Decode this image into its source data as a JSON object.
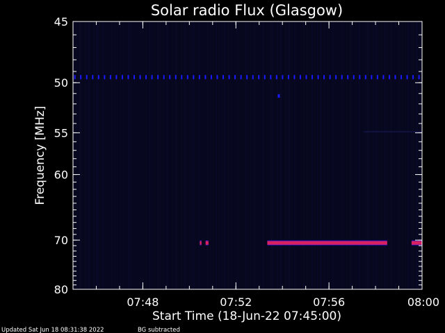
{
  "chart_data": {
    "type": "heatmap",
    "title": "Solar radio Flux (Glasgow)",
    "xlabel": "Start Time (18-Jun-22 07:45:00)",
    "ylabel": "Frequency [MHz]",
    "x_range_minutes": [
      0,
      15
    ],
    "x_ticks": [
      {
        "label": "07:48",
        "minute": 3
      },
      {
        "label": "07:52",
        "minute": 7
      },
      {
        "label": "07:56",
        "minute": 11
      },
      {
        "label": "08:00",
        "minute": 15
      }
    ],
    "y_range_mhz": [
      45,
      80
    ],
    "y_scale": "reciprocal",
    "y_ticks": [
      {
        "label": "45",
        "mhz": 45
      },
      {
        "label": "50",
        "mhz": 50
      },
      {
        "label": "55",
        "mhz": 55
      },
      {
        "label": "60",
        "mhz": 60
      },
      {
        "label": "70",
        "mhz": 70
      },
      {
        "label": "80",
        "mhz": 80
      }
    ],
    "background_color": "#07071e",
    "colors": {
      "weak": "#0a0a8a",
      "blue": "#1a1aff",
      "red": "#e0205a",
      "magenta": "#b02080"
    },
    "features": {
      "dotted_line": {
        "mhz": 49.5,
        "intensity": "blue"
      },
      "isolated_dot": {
        "mhz": 51.2,
        "minute": 8.8,
        "intensity": "blue"
      },
      "emission_segments_at_70_5_mhz": [
        {
          "start_minute": 5.45,
          "end_minute": 5.52,
          "intensity": "red"
        },
        {
          "start_minute": 5.7,
          "end_minute": 5.82,
          "intensity": "red"
        },
        {
          "start_minute": 8.35,
          "end_minute": 13.5,
          "intensity": "red"
        },
        {
          "start_minute": 14.55,
          "end_minute": 15.0,
          "intensity": "red"
        }
      ]
    }
  },
  "footer": {
    "updated": "Updated Sat Jun 18 08:31:38 2022",
    "bg_note": "BG subtracted"
  }
}
